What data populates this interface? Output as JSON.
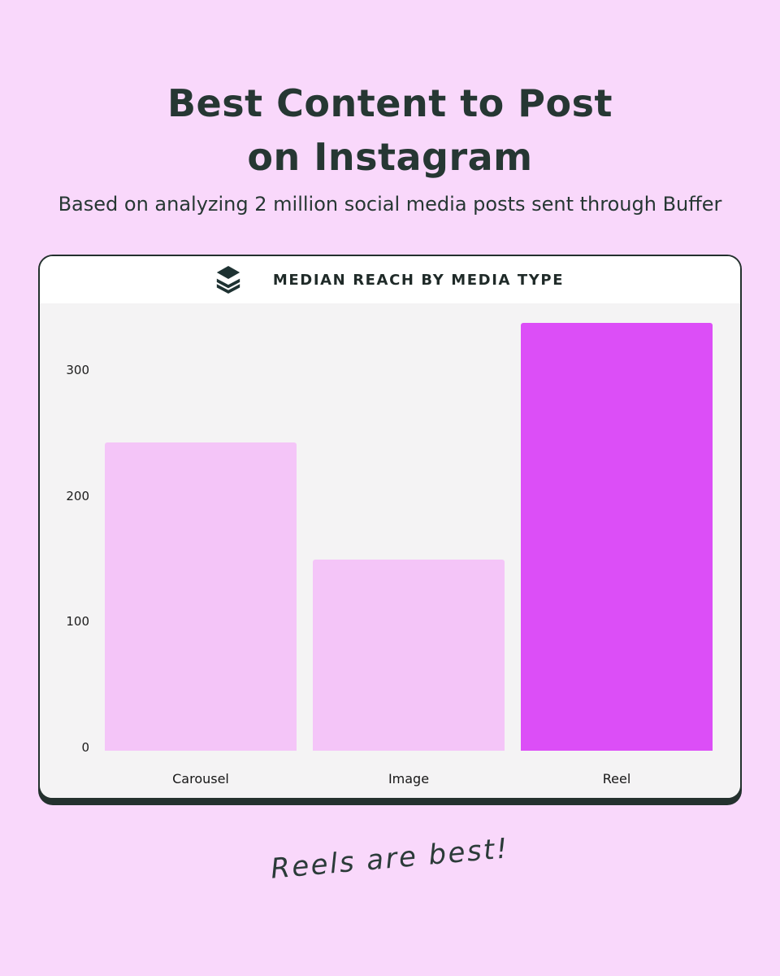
{
  "header": {
    "title_line1": "Best Content to Post",
    "title_line2": "on Instagram",
    "subtitle": "Based on analyzing 2 million social media posts sent through Buffer"
  },
  "card": {
    "logo_icon": "buffer-logo",
    "title": "MEDIAN REACH BY MEDIA TYPE"
  },
  "chart_data": {
    "type": "bar",
    "title": "MEDIAN REACH BY MEDIA TYPE",
    "categories": [
      "Carousel",
      "Image",
      "Reel"
    ],
    "values": [
      245,
      152,
      340
    ],
    "yticks": [
      0,
      100,
      200,
      300
    ],
    "ylim": [
      0,
      355
    ],
    "xlabel": "",
    "ylabel": "",
    "grid": false,
    "legend": false,
    "plot_bg": "#F4F3F4",
    "bar_colors": [
      "#F4C5F8",
      "#F4C5F8",
      "#DC4EF7"
    ],
    "highlight_category": "Reel"
  },
  "footer": {
    "note": "Reels are best!"
  },
  "colors": {
    "page_bg": "#F9D8FB",
    "text_dark": "#263733",
    "card_border": "#24312E",
    "bar_light": "#F4C5F8",
    "bar_highlight": "#DC4EF7",
    "logo_color": "#1E3232"
  }
}
